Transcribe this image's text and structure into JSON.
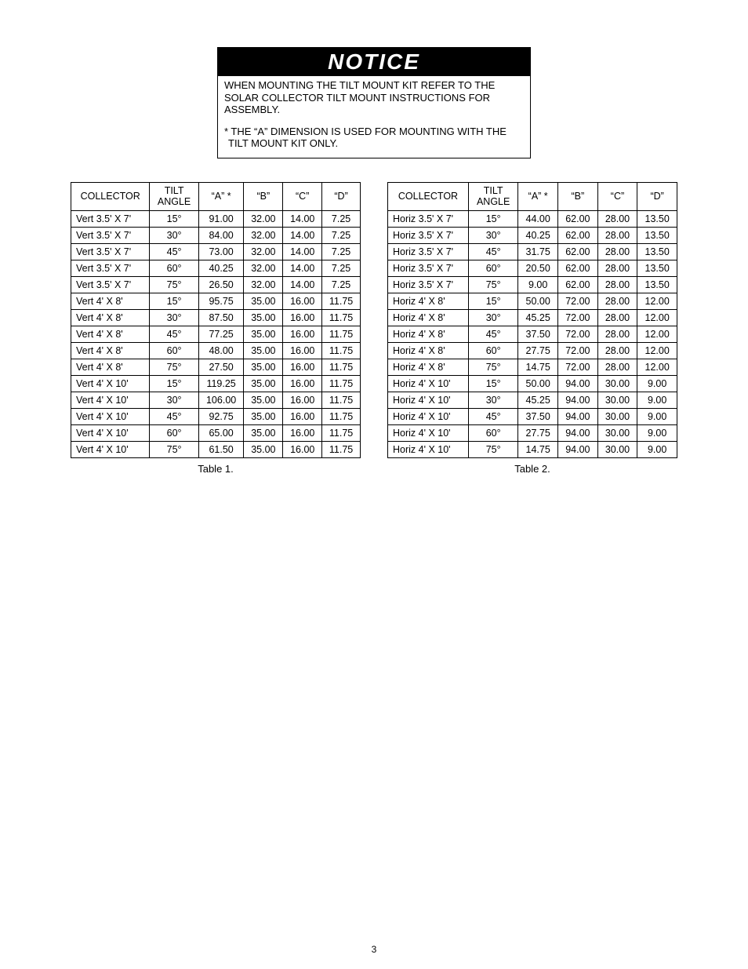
{
  "notice": {
    "heading": "NOTICE",
    "para1": "WHEN MOUNTING THE TILT MOUNT KIT REFER TO THE SOLAR COLLECTOR TILT MOUNT INSTRUCTIONS  FOR ASSEMBLY.",
    "para2": "* THE “A” DIMENSION IS USED FOR MOUNTING WITH THE TILT MOUNT KIT ONLY."
  },
  "tables": {
    "columns": [
      "COLLECTOR",
      "TILT ANGLE",
      "“A” *",
      "“B”",
      "“C”",
      "“D”"
    ],
    "left": {
      "caption": "Table 1.",
      "rows": [
        [
          "Vert 3.5' X 7'",
          "15°",
          "91.00",
          "32.00",
          "14.00",
          "7.25"
        ],
        [
          "Vert 3.5' X 7'",
          "30°",
          "84.00",
          "32.00",
          "14.00",
          "7.25"
        ],
        [
          "Vert 3.5' X 7'",
          "45°",
          "73.00",
          "32.00",
          "14.00",
          "7.25"
        ],
        [
          "Vert 3.5' X 7'",
          "60°",
          "40.25",
          "32.00",
          "14.00",
          "7.25"
        ],
        [
          "Vert 3.5' X 7'",
          "75°",
          "26.50",
          "32.00",
          "14.00",
          "7.25"
        ],
        [
          "Vert 4' X 8'",
          "15°",
          "95.75",
          "35.00",
          "16.00",
          "11.75"
        ],
        [
          "Vert 4' X 8'",
          "30°",
          "87.50",
          "35.00",
          "16.00",
          "11.75"
        ],
        [
          "Vert 4' X 8'",
          "45°",
          "77.25",
          "35.00",
          "16.00",
          "11.75"
        ],
        [
          "Vert 4' X 8'",
          "60°",
          "48.00",
          "35.00",
          "16.00",
          "11.75"
        ],
        [
          "Vert 4' X 8'",
          "75°",
          "27.50",
          "35.00",
          "16.00",
          "11.75"
        ],
        [
          "Vert 4' X 10'",
          "15°",
          "119.25",
          "35.00",
          "16.00",
          "11.75"
        ],
        [
          "Vert 4' X 10'",
          "30°",
          "106.00",
          "35.00",
          "16.00",
          "11.75"
        ],
        [
          "Vert 4' X 10'",
          "45°",
          "92.75",
          "35.00",
          "16.00",
          "11.75"
        ],
        [
          "Vert 4' X 10'",
          "60°",
          "65.00",
          "35.00",
          "16.00",
          "11.75"
        ],
        [
          "Vert 4' X 10'",
          "75°",
          "61.50",
          "35.00",
          "16.00",
          "11.75"
        ]
      ]
    },
    "right": {
      "caption": "Table 2.",
      "rows": [
        [
          "Horiz 3.5' X 7'",
          "15°",
          "44.00",
          "62.00",
          "28.00",
          "13.50"
        ],
        [
          "Horiz 3.5' X 7'",
          "30°",
          "40.25",
          "62.00",
          "28.00",
          "13.50"
        ],
        [
          "Horiz 3.5' X 7'",
          "45°",
          "31.75",
          "62.00",
          "28.00",
          "13.50"
        ],
        [
          "Horiz 3.5' X 7'",
          "60°",
          "20.50",
          "62.00",
          "28.00",
          "13.50"
        ],
        [
          "Horiz 3.5' X 7'",
          "75°",
          "9.00",
          "62.00",
          "28.00",
          "13.50"
        ],
        [
          "Horiz 4' X 8'",
          "15°",
          "50.00",
          "72.00",
          "28.00",
          "12.00"
        ],
        [
          "Horiz 4' X 8'",
          "30°",
          "45.25",
          "72.00",
          "28.00",
          "12.00"
        ],
        [
          "Horiz 4' X 8'",
          "45°",
          "37.50",
          "72.00",
          "28.00",
          "12.00"
        ],
        [
          "Horiz 4' X 8'",
          "60°",
          "27.75",
          "72.00",
          "28.00",
          "12.00"
        ],
        [
          "Horiz 4' X 8'",
          "75°",
          "14.75",
          "72.00",
          "28.00",
          "12.00"
        ],
        [
          "Horiz 4' X 10'",
          "15°",
          "50.00",
          "94.00",
          "30.00",
          "9.00"
        ],
        [
          "Horiz 4' X 10'",
          "30°",
          "45.25",
          "94.00",
          "30.00",
          "9.00"
        ],
        [
          "Horiz 4' X 10'",
          "45°",
          "37.50",
          "94.00",
          "30.00",
          "9.00"
        ],
        [
          "Horiz 4' X 10'",
          "60°",
          "27.75",
          "94.00",
          "30.00",
          "9.00"
        ],
        [
          "Horiz 4' X 10'",
          "75°",
          "14.75",
          "94.00",
          "30.00",
          "9.00"
        ]
      ]
    }
  },
  "pageNumber": "3"
}
